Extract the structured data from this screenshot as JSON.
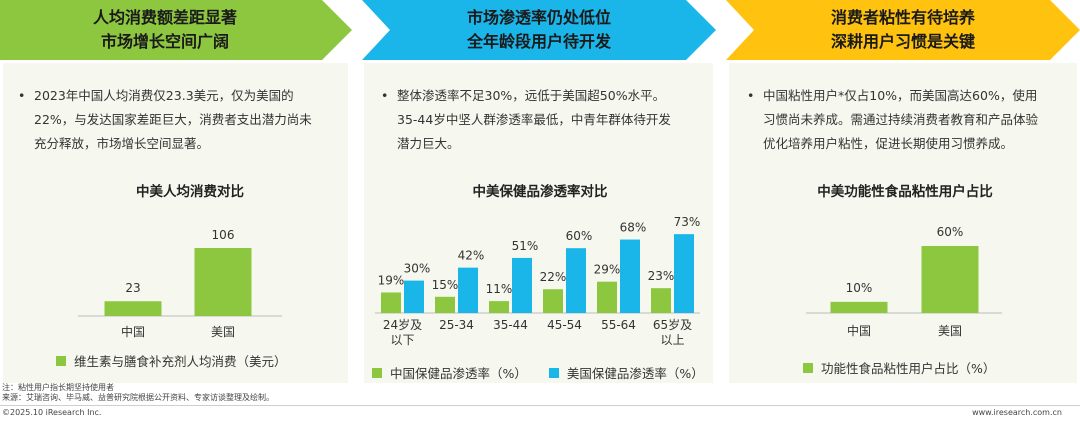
{
  "colors": {
    "green": "#8dc63f",
    "cyan": "#1ab5e9",
    "yellow": "#ffc20e",
    "panel": "#f6f8ef"
  },
  "sections": [
    {
      "title": [
        "人均消费额差距显著",
        "市场增长空间广阔"
      ],
      "bullet": [
        "2023年中国人均消费仅23.3美元，仅为美国的",
        "22%，与发达国家差距巨大，消费者支出潜力尚未",
        "充分释放，市场增长空间显著。"
      ],
      "chart_title": "中美人均消费对比",
      "legend": "维生素与膳食补充剂人均消费（美元）"
    },
    {
      "title": [
        "市场渗透率仍处低位",
        "全年龄段用户待开发"
      ],
      "bullet": [
        "整体渗透率不足30%，远低于美国超50%水平。",
        "35-44岁中坚人群渗透率最低，中青年群体待开发",
        "潜力巨大。"
      ],
      "chart_title": "中美保健品渗透率对比",
      "legend": [
        "中国保健品渗透率（%）",
        "美国保健品渗透率（%）"
      ]
    },
    {
      "title": [
        "消费者粘性有待培养",
        "深耕用户习惯是关键"
      ],
      "bullet": [
        "中国粘性用户*仅占10%，而美国高达60%，使用",
        "习惯尚未养成。需通过持续消费者教育和产品体验",
        "优化培养用户粘性，促进长期使用习惯养成。"
      ],
      "chart_title": "中美功能性食品粘性用户占比",
      "legend": "功能性食品粘性用户占比（%）"
    }
  ],
  "chart_data": [
    {
      "type": "bar",
      "title": "中美人均消费对比",
      "categories": [
        "中国",
        "美国"
      ],
      "series": [
        {
          "name": "维生素与膳食补充剂人均消费（美元）",
          "values": [
            23,
            106
          ]
        }
      ],
      "value_labels": [
        "23",
        "106"
      ]
    },
    {
      "type": "bar",
      "title": "中美保健品渗透率对比",
      "categories": [
        "24岁及以下",
        "25-34",
        "35-44",
        "45-54",
        "55-64",
        "65岁及以上"
      ],
      "category_lines": [
        [
          "24岁及",
          "以下"
        ],
        [
          "25-34"
        ],
        [
          "35-44"
        ],
        [
          "45-54"
        ],
        [
          "55-64"
        ],
        [
          "65岁及",
          "以上"
        ]
      ],
      "series": [
        {
          "name": "中国保健品渗透率（%）",
          "values": [
            19,
            15,
            11,
            22,
            29,
            23
          ],
          "labels": [
            "19%",
            "15%",
            "11%",
            "22%",
            "29%",
            "23%"
          ]
        },
        {
          "name": "美国保健品渗透率（%）",
          "values": [
            30,
            42,
            51,
            60,
            68,
            73
          ],
          "labels": [
            "30%",
            "42%",
            "51%",
            "60%",
            "68%",
            "73%"
          ]
        }
      ]
    },
    {
      "type": "bar",
      "title": "中美功能性食品粘性用户占比",
      "categories": [
        "中国",
        "美国"
      ],
      "series": [
        {
          "name": "功能性食品粘性用户占比（%）",
          "values": [
            10,
            60
          ]
        }
      ],
      "value_labels": [
        "10%",
        "60%"
      ]
    }
  ],
  "footer": {
    "notes": [
      "注：粘性用户指长期坚持使用者",
      "来源：艾瑞咨询、毕马威、益普研究院根据公开资料、专家访谈整理及绘制。"
    ],
    "copyright": "©2025.10 iResearch Inc.",
    "website": "www.iresearch.com.cn"
  }
}
